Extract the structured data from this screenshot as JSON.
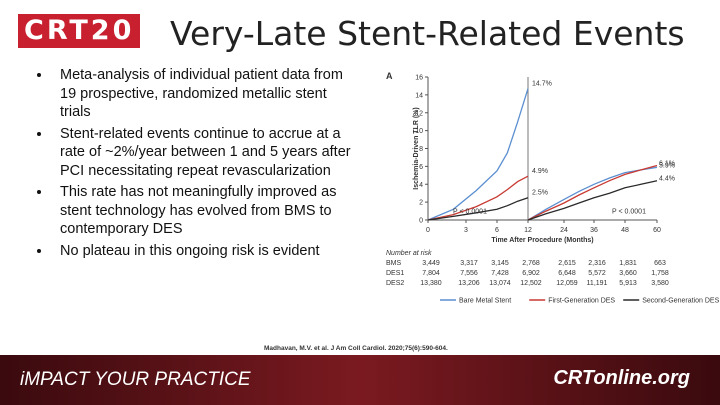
{
  "header": {
    "logo": "CRT20",
    "title": "Very-Late Stent-Related Events"
  },
  "bullets": [
    "Meta-analysis of individual patient data from 19 prospective, randomized metallic stent trials",
    "Stent-related events continue to accrue at a rate of ~2%/year between 1 and 5 years after PCI necessitating repeat revascularization",
    "This rate has not meaningfully improved as stent technology has evolved from BMS to contemporary DES",
    "No plateau in this ongoing risk is evident"
  ],
  "chart": {
    "type": "line",
    "panel_label": "A",
    "ylabel": "Ischemia-Driven TLR (%)",
    "xlabel": "Time After Procedure (Months)",
    "x": [
      0,
      2,
      4,
      6,
      8,
      10,
      12,
      12,
      12,
      18,
      24,
      30,
      36,
      42,
      48,
      54,
      60
    ],
    "xlim": [
      0,
      60
    ],
    "xticks": [
      0,
      3,
      6,
      12,
      24,
      36,
      48,
      60
    ],
    "ylim": [
      0,
      16
    ],
    "yticks": [
      0,
      2,
      4,
      6,
      8,
      10,
      12,
      14,
      16
    ],
    "series": [
      {
        "name": "Bare Metal Stent",
        "color": "#5b8fd0",
        "values": [
          0,
          1.2,
          3.3,
          5.5,
          7.5,
          11,
          14.7,
          null,
          0,
          1.2,
          2.3,
          3.2,
          4,
          4.7,
          5.3,
          5.6,
          5.9
        ]
      },
      {
        "name": "First-Generation DES",
        "color": "#c83a32",
        "values": [
          0,
          0.6,
          1.5,
          2.6,
          3.4,
          4.3,
          4.9,
          null,
          0,
          1,
          1.9,
          2.8,
          3.6,
          4.4,
          5.1,
          5.6,
          6.1
        ]
      },
      {
        "name": "Second-Generation DES",
        "color": "#2a2a2a",
        "values": [
          0,
          0.4,
          0.8,
          1.2,
          1.6,
          2.1,
          2.5,
          null,
          0,
          0.7,
          1.3,
          1.9,
          2.5,
          3,
          3.6,
          4,
          4.4
        ]
      }
    ],
    "annotations": [
      {
        "text": "14.7%",
        "x": 12,
        "y": 14.7
      },
      {
        "text": "4.9%",
        "x": 12,
        "y": 4.9
      },
      {
        "text": "2.5%",
        "x": 12,
        "y": 2.5
      },
      {
        "text": "6.1%",
        "x": 60,
        "y": 6.1
      },
      {
        "text": "5.9%",
        "x": 60,
        "y": 5.9
      },
      {
        "text": "4.4%",
        "x": 60,
        "y": 4.4
      },
      {
        "text": "P < 0.0001",
        "x": 3,
        "y": 0.4
      },
      {
        "text": "P < 0.0001",
        "x": 48,
        "y": 0.4
      }
    ],
    "risk_table": {
      "title": "Number at risk",
      "rows": [
        [
          "BMS",
          "3,449",
          "3,317",
          "3,145",
          "2,768",
          "2,615",
          "2,316",
          "1,831",
          "663"
        ],
        [
          "DES1",
          "7,804",
          "7,556",
          "7,428",
          "6,902",
          "6,648",
          "5,572",
          "3,660",
          "1,758"
        ],
        [
          "DES2",
          "13,380",
          "13,206",
          "13,074",
          "12,502",
          "12,059",
          "11,191",
          "5,913",
          "3,580"
        ]
      ]
    }
  },
  "citation": "Madhavan, M.V. et al. J Am Coll Cardiol. 2020;75(6):590-604.",
  "footer": {
    "tagline": "iMPACT YOUR PRACTICE",
    "site": "CRTonline.org"
  }
}
